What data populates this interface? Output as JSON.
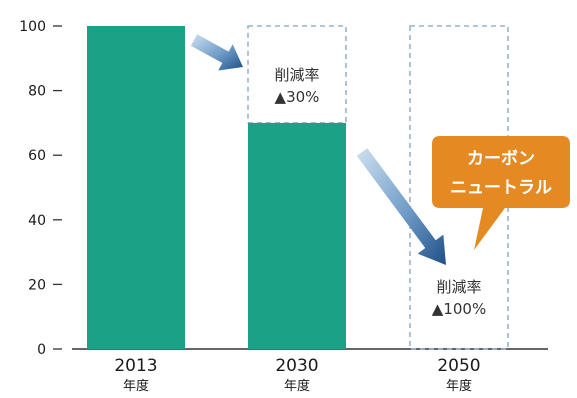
{
  "chart_data": {
    "type": "bar",
    "categories": [
      "2013",
      "2030",
      "2050"
    ],
    "category_unit": "年度",
    "values": [
      100,
      70,
      0
    ],
    "ylim": [
      0,
      100
    ],
    "yticks": [
      0,
      20,
      40,
      60,
      80,
      100
    ],
    "reference_value": 100,
    "bar_color": "#1aa186",
    "ghost_border_color": "#9ab4cc",
    "arrow_color": "#2c5e96",
    "callout_color": "#e58a23",
    "annotations": [
      {
        "category": "2030",
        "line1": "削減率",
        "line2": "▲30%"
      },
      {
        "category": "2050",
        "line1": "削減率",
        "line2": "▲100%"
      }
    ],
    "callout": {
      "line1": "カーボン",
      "line2": "ニュートラル"
    },
    "grid": false
  }
}
